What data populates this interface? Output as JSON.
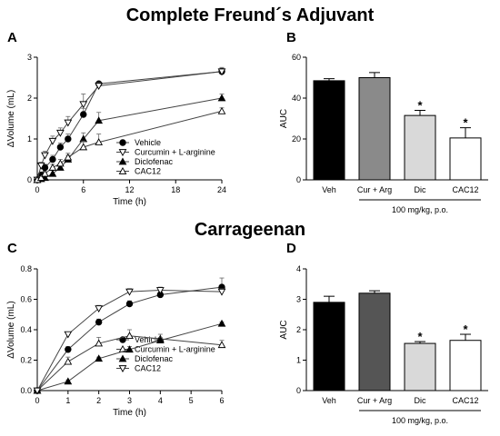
{
  "section_titles": [
    "Complete Freund´s Adjuvant",
    "Carrageenan"
  ],
  "chart_data": [
    {
      "panel": "A",
      "type": "line",
      "xlabel": "Time (h)",
      "ylabel": "ΔVolume (mL)",
      "xlim": [
        0,
        24
      ],
      "ylim": [
        0,
        3
      ],
      "xticks": [
        "0",
        "6",
        "12",
        "18",
        "24"
      ],
      "yticks": [
        "0",
        "1",
        "2",
        "3"
      ],
      "grid": false,
      "legend_position": "middle-right",
      "series": [
        {
          "name": "Vehicle",
          "marker": "circle-filled",
          "x": [
            0,
            0.5,
            1,
            2,
            3,
            4,
            6,
            8,
            24
          ],
          "y": [
            0,
            0.12,
            0.3,
            0.5,
            0.8,
            1.0,
            1.6,
            2.35,
            2.65
          ],
          "err": [
            0.02,
            0.05,
            0.08,
            0.1,
            0.1,
            0.12,
            0.15,
            0.05,
            0.08
          ]
        },
        {
          "name": "Curcumin + L-arginine",
          "marker": "triangle-down-open",
          "x": [
            0,
            0.5,
            1,
            2,
            3,
            4,
            6,
            8,
            24
          ],
          "y": [
            0,
            0.35,
            0.6,
            0.95,
            1.15,
            1.4,
            1.85,
            2.3,
            2.65
          ],
          "err": [
            0.02,
            0.08,
            0.1,
            0.12,
            0.12,
            0.15,
            0.25,
            0.08,
            0.1
          ]
        },
        {
          "name": "Diclofenac",
          "marker": "triangle-up-filled",
          "x": [
            0,
            0.5,
            1,
            2,
            3,
            4,
            6,
            8,
            24
          ],
          "y": [
            0,
            0.02,
            0.05,
            0.15,
            0.3,
            0.5,
            1.0,
            1.45,
            2.0
          ],
          "err": [
            0.02,
            0.03,
            0.05,
            0.08,
            0.1,
            0.1,
            0.15,
            0.2,
            0.1
          ]
        },
        {
          "name": "CAC12",
          "marker": "triangle-up-open",
          "x": [
            0,
            0.5,
            1,
            2,
            3,
            4,
            6,
            8,
            24
          ],
          "y": [
            0,
            0.05,
            0.15,
            0.3,
            0.4,
            0.55,
            0.8,
            0.92,
            1.68
          ],
          "err": [
            0.02,
            0.03,
            0.05,
            0.08,
            0.1,
            0.1,
            0.15,
            0.2,
            0.08
          ]
        }
      ]
    },
    {
      "panel": "B",
      "type": "bar",
      "categories": [
        "Veh",
        "Cur + Arg",
        "Dic",
        "CAC12"
      ],
      "values": [
        48.5,
        50,
        31.5,
        20.5
      ],
      "err": [
        1,
        2.5,
        2.5,
        5
      ],
      "significant": [
        false,
        false,
        true,
        true
      ],
      "bar_colors": [
        "#000000",
        "#8a8a8a",
        "#d9d9d9",
        "#ffffff"
      ],
      "ylabel": "AUC",
      "ylim": [
        0,
        60
      ],
      "yticks": [
        "0",
        "20",
        "40",
        "60"
      ],
      "note": "100 mg/kg, p.o."
    },
    {
      "panel": "C",
      "type": "line",
      "xlabel": "Time (h)",
      "ylabel": "ΔVolume (mL)",
      "xlim": [
        0,
        6
      ],
      "ylim": [
        0,
        0.8
      ],
      "xticks": [
        "0",
        "1",
        "2",
        "3",
        "4",
        "5",
        "6"
      ],
      "yticks": [
        "0.0",
        "0.2",
        "0.4",
        "0.6",
        "0.8"
      ],
      "grid": false,
      "legend_position": "lower-center",
      "series": [
        {
          "name": "Vehicle",
          "marker": "circle-filled",
          "x": [
            0,
            1,
            2,
            3,
            4,
            6
          ],
          "y": [
            0,
            0.27,
            0.45,
            0.57,
            0.63,
            0.68
          ],
          "err": [
            0.005,
            0.02,
            0.02,
            0.02,
            0.02,
            0.06
          ]
        },
        {
          "name": "Curcumin + L-arginine",
          "marker": "triangle-up-open",
          "x": [
            0,
            1,
            2,
            3,
            4,
            6
          ],
          "y": [
            0,
            0.19,
            0.31,
            0.36,
            0.34,
            0.3
          ],
          "err": [
            0.005,
            0.03,
            0.04,
            0.04,
            0.03,
            0.03
          ]
        },
        {
          "name": "Diclofenac",
          "marker": "triangle-up-filled",
          "x": [
            0,
            1,
            2,
            3,
            4,
            6
          ],
          "y": [
            0,
            0.06,
            0.21,
            0.27,
            0.33,
            0.44
          ],
          "err": [
            0.005,
            0.01,
            0.01,
            0.02,
            0.02,
            0.01
          ]
        },
        {
          "name": "CAC12",
          "marker": "triangle-down-open",
          "x": [
            0,
            1,
            2,
            3,
            4,
            6
          ],
          "y": [
            0,
            0.37,
            0.54,
            0.65,
            0.66,
            0.65
          ],
          "err": [
            0.005,
            0.01,
            0.02,
            0.02,
            0.02,
            0.02
          ]
        }
      ]
    },
    {
      "panel": "D",
      "type": "bar",
      "categories": [
        "Veh",
        "Cur + Arg",
        "Dic",
        "CAC12"
      ],
      "values": [
        2.9,
        3.2,
        1.55,
        1.65
      ],
      "err": [
        0.2,
        0.08,
        0.06,
        0.2
      ],
      "significant": [
        false,
        false,
        true,
        true
      ],
      "bar_colors": [
        "#000000",
        "#555555",
        "#d9d9d9",
        "#ffffff"
      ],
      "ylabel": "AUC",
      "ylim": [
        0,
        4
      ],
      "yticks": [
        "0",
        "1",
        "2",
        "3",
        "4"
      ],
      "note": "100 mg/kg, p.o."
    }
  ]
}
